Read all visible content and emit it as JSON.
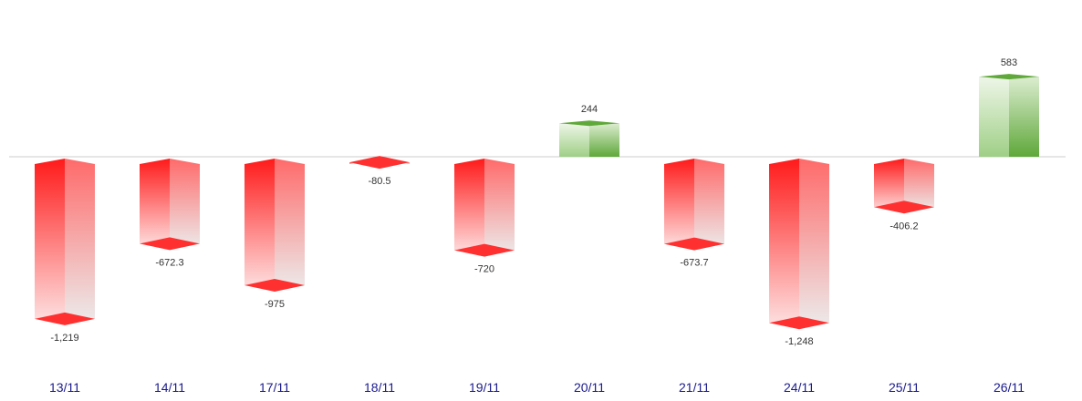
{
  "chart_data": {
    "type": "bar",
    "style": "3d-prism",
    "categories": [
      "13/11",
      "14/11",
      "17/11",
      "18/11",
      "19/11",
      "20/11",
      "21/11",
      "24/11",
      "25/11",
      "26/11"
    ],
    "values": [
      -1219,
      -672.3,
      -975,
      -80.5,
      -720,
      244,
      -673.7,
      -1248,
      -406.2,
      583
    ],
    "value_labels": [
      "-1,219",
      "-672.3",
      "-975",
      "-80.5",
      "-720",
      "244",
      "-673.7",
      "-1,248",
      "-406.2",
      "583"
    ],
    "title": "",
    "xlabel": "",
    "ylabel": "",
    "ylim": [
      -1350,
      1100
    ],
    "grid": false,
    "legend": "none",
    "colors": {
      "negative": "#ff1a1a",
      "negative_light": "#ececec",
      "positive": "#5fa83a",
      "positive_light": "#eef6e8",
      "baseline": "#cccccc",
      "tick_text": "#1a1a8c",
      "value_text": "#333333"
    }
  }
}
